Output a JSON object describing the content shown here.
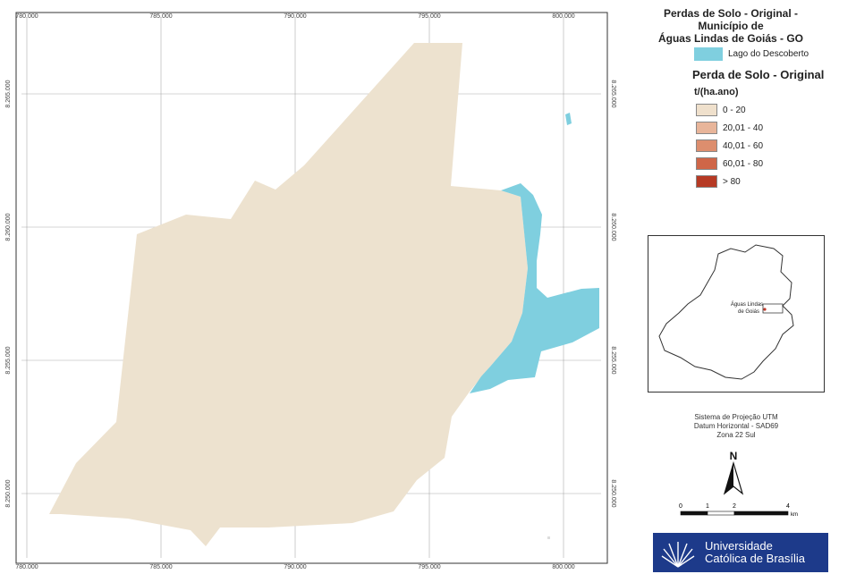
{
  "map": {
    "x_ticks": [
      "780.000",
      "785.000",
      "790.000",
      "795.000",
      "800.000"
    ],
    "y_ticks": [
      "8.265.000",
      "8.260.000",
      "8.255.000",
      "8.250.000"
    ],
    "inset_label_line1": "Águas Lindas",
    "inset_label_line2": "de Goiás"
  },
  "legend": {
    "title_line1": "Perdas de Solo - Original -",
    "title_line2": "Município de",
    "title_line3": "Águas Lindas de Goiás - GO",
    "lake_label": "Lago do Descoberto",
    "lake_color": "#7fcfdf",
    "perda_title": "Perda de Solo - Original",
    "unit": "t/(ha.ano)",
    "classes": [
      {
        "label": "0 - 20",
        "color": "#efe0cc"
      },
      {
        "label": "20,01 - 40",
        "color": "#e8b59a"
      },
      {
        "label": "40,01 - 60",
        "color": "#dd8e6e"
      },
      {
        "label": "60,01 - 80",
        "color": "#cf6648"
      },
      {
        "label": "> 80",
        "color": "#b63a24"
      }
    ]
  },
  "projection": {
    "line1": "Sistema de Projeção UTM",
    "line2": "Datum Horizontal - SAD69",
    "line3": "Zona 22 Sul"
  },
  "north_label": "N",
  "scale": {
    "labels": [
      "0",
      "1",
      "2",
      "4"
    ],
    "unit": "km"
  },
  "logo": {
    "line1": "Universidade",
    "line2": "Católica de Brasília"
  },
  "colors": {
    "municipality_fill": "#ede2cf",
    "water_fill": "#7fcfdf"
  }
}
